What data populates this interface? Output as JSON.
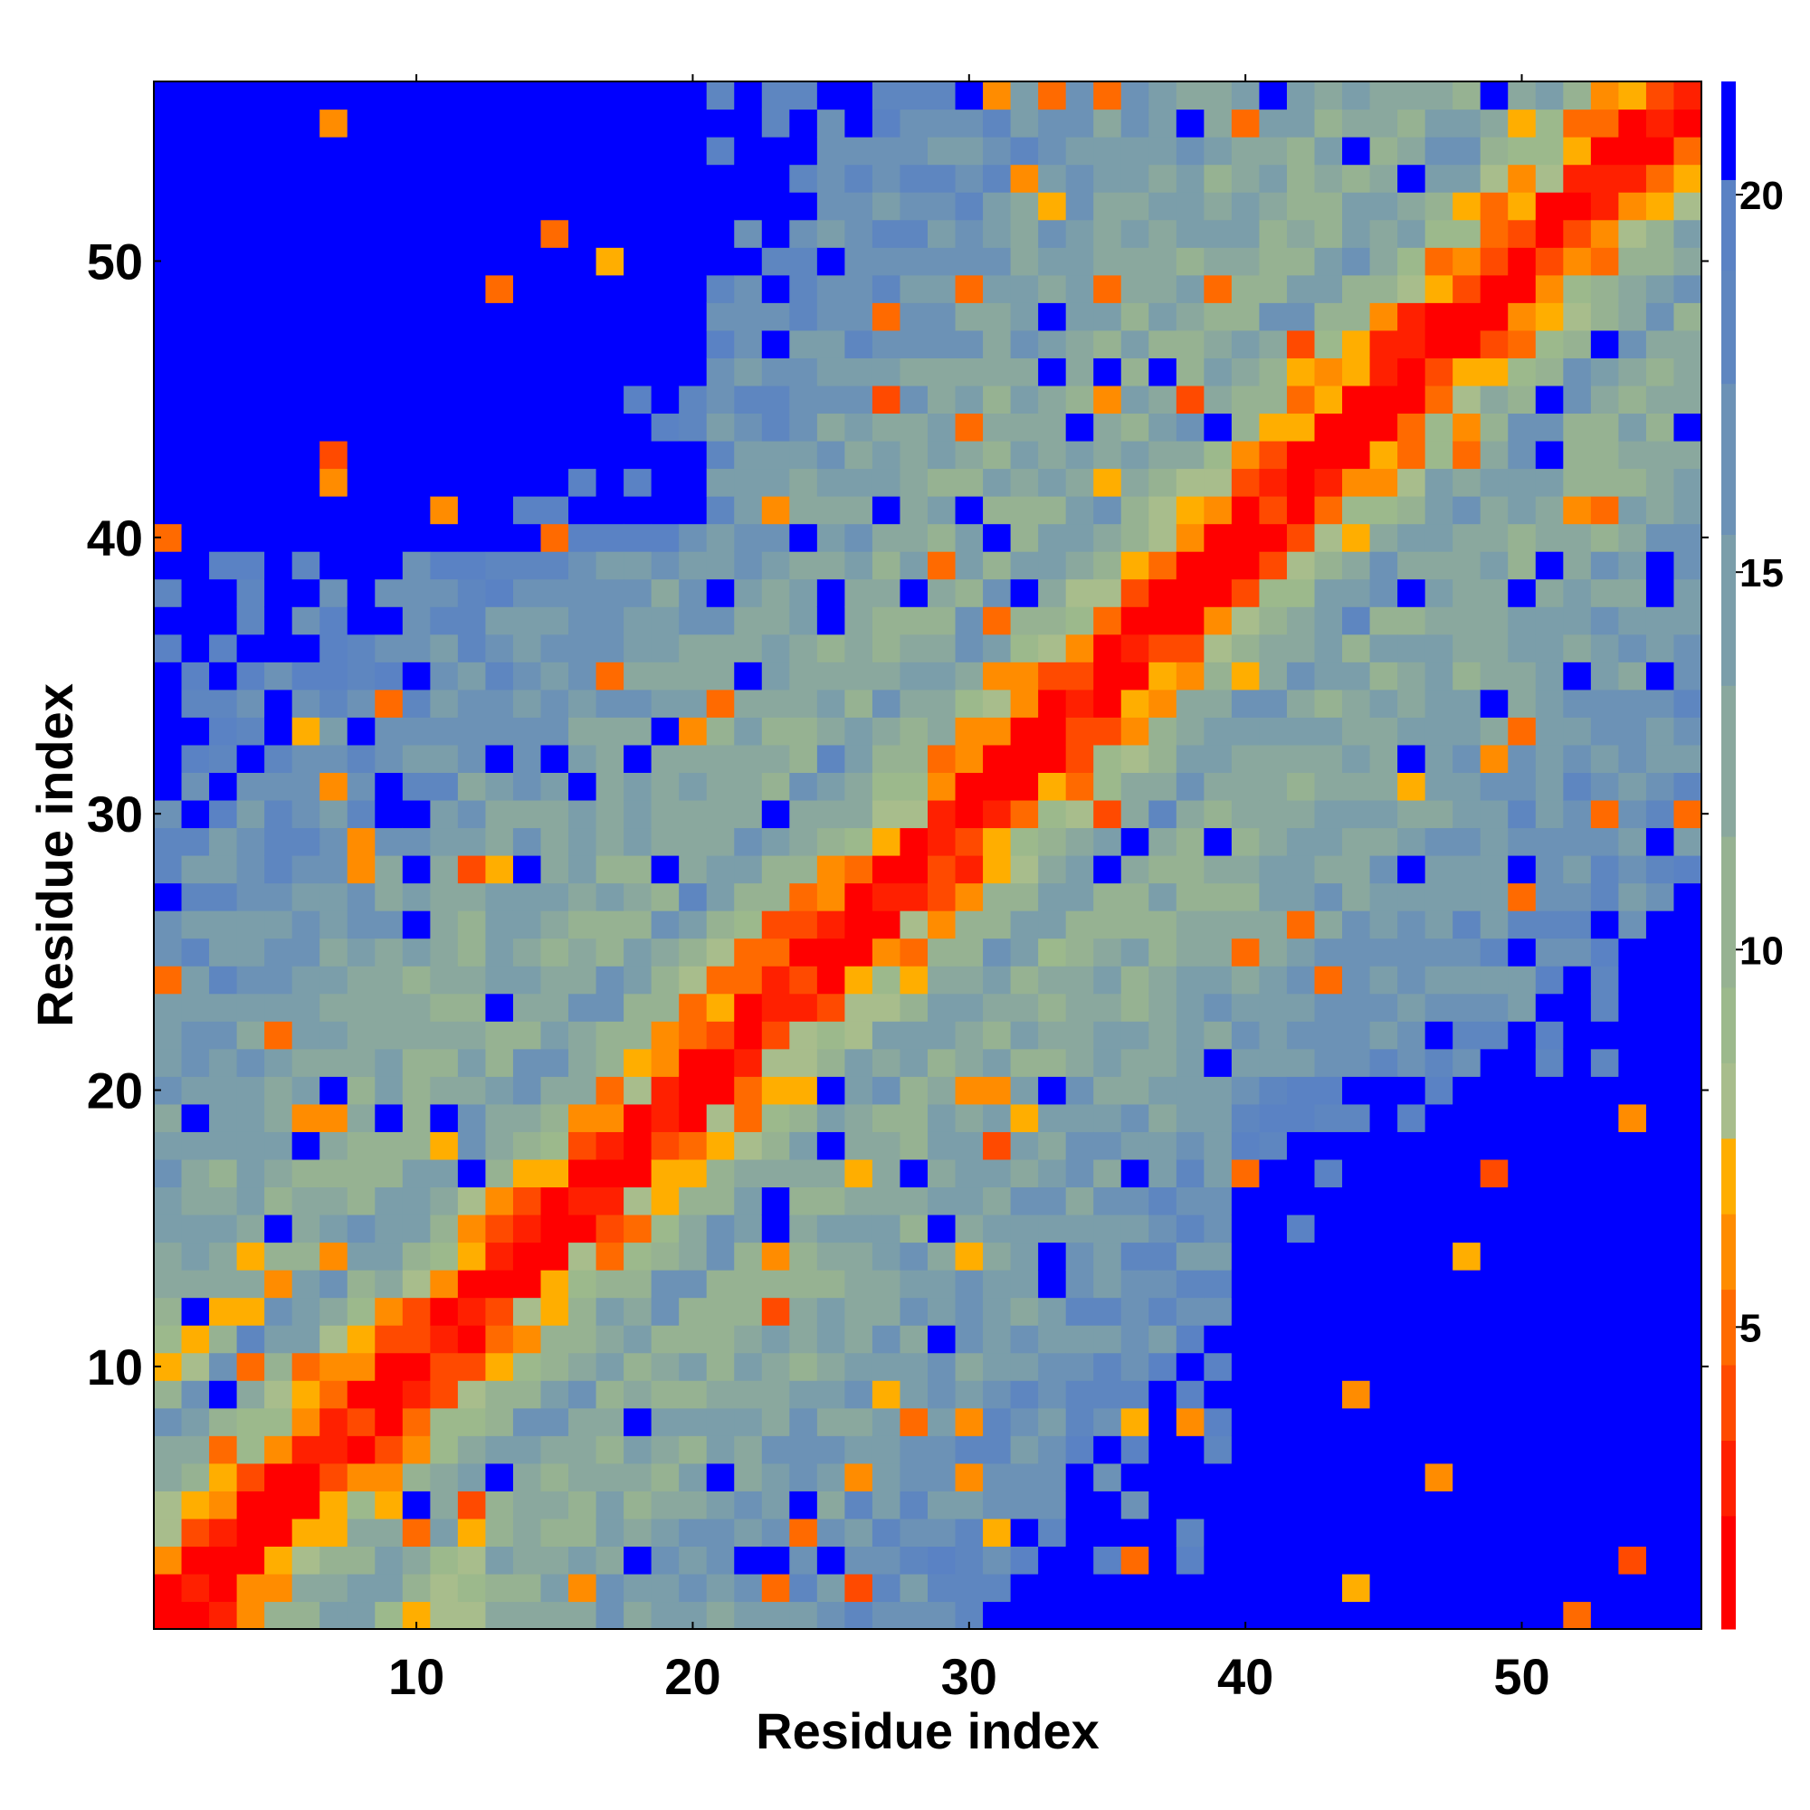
{
  "chart_data": {
    "type": "heatmap",
    "title": "",
    "xlabel": "Residue index",
    "ylabel": "Residue index",
    "n": 56,
    "x_ticks": [
      10,
      20,
      30,
      40,
      50
    ],
    "y_ticks": [
      10,
      20,
      30,
      40,
      50
    ],
    "colorbar": {
      "ticks": [
        5,
        10,
        15,
        20
      ],
      "range": [
        1,
        21.5
      ],
      "levels": [
        {
          "max": 2.5,
          "color": "#ff0000"
        },
        {
          "max": 3.5,
          "color": "#ff2000"
        },
        {
          "max": 4.5,
          "color": "#ff4a00"
        },
        {
          "max": 5.5,
          "color": "#ff6a00"
        },
        {
          "max": 6.5,
          "color": "#ff8c00"
        },
        {
          "max": 7.5,
          "color": "#ffae00"
        },
        {
          "max": 8.5,
          "color": "#a8bd8c"
        },
        {
          "max": 9.5,
          "color": "#9cb98c"
        },
        {
          "max": 11.5,
          "color": "#96b292"
        },
        {
          "max": 13.5,
          "color": "#8aa89e"
        },
        {
          "max": 15.5,
          "color": "#7b9eaa"
        },
        {
          "max": 17.5,
          "color": "#6c92b6"
        },
        {
          "max": 19.0,
          "color": "#5e86c0"
        },
        {
          "max": 20.2,
          "color": "#5a82c4"
        },
        {
          "max": 99,
          "color": "#0000ff"
        }
      ]
    },
    "value_model": "contact-distance map: distance grows with |i-j| along diagonal bands; matrix values generated from band parameters below",
    "bands": [
      {
        "offset": 0,
        "value": 1.5
      },
      {
        "offset": 1,
        "value": 2.0
      },
      {
        "offset": 2,
        "value": 5.5
      },
      {
        "offset": 3,
        "value": 7.0
      },
      {
        "offset": 4,
        "value": 9.5
      },
      {
        "offset": 5,
        "value": 12.0
      },
      {
        "offset": 6,
        "value": 14.0
      },
      {
        "offset": 7,
        "value": 15.5
      }
    ]
  }
}
